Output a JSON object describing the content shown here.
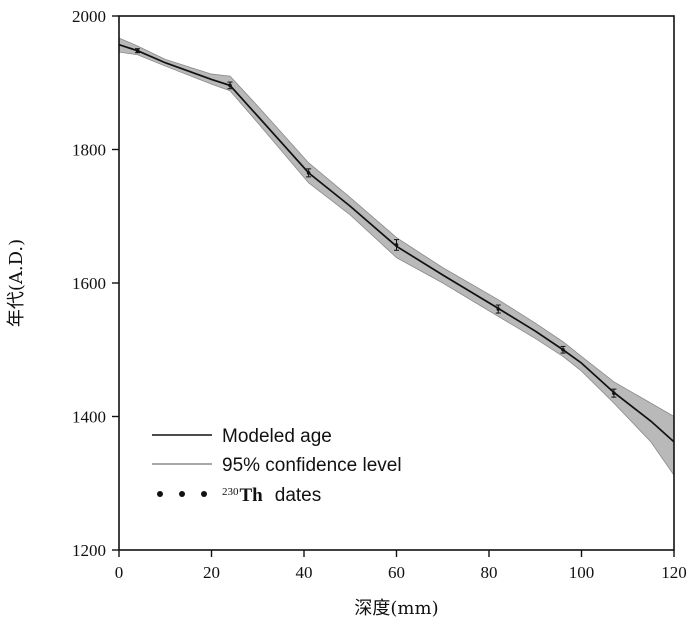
{
  "chart_data": {
    "type": "line",
    "xlabel": "深度(mm)",
    "ylabel": "年代(A.D.)",
    "xlim": [
      0,
      120
    ],
    "ylim": [
      1200,
      2000
    ],
    "xticks": [
      0,
      20,
      40,
      60,
      80,
      100,
      120
    ],
    "yticks": [
      1200,
      1400,
      1600,
      1800,
      2000
    ],
    "series": [
      {
        "name": "Modeled age",
        "x": [
          0,
          4,
          10,
          20,
          24,
          30,
          41,
          50,
          60,
          70,
          82,
          90,
          96,
          100,
          107,
          115,
          120
        ],
        "y": [
          1957,
          1948,
          1930,
          1905,
          1896,
          1850,
          1765,
          1715,
          1655,
          1612,
          1562,
          1528,
          1500,
          1480,
          1436,
          1393,
          1362
        ]
      },
      {
        "name": "95% confidence level",
        "x": [
          0,
          4,
          10,
          20,
          24,
          30,
          41,
          50,
          60,
          70,
          82,
          90,
          96,
          100,
          107,
          115,
          120
        ],
        "upper": [
          1967,
          1955,
          1935,
          1913,
          1910,
          1865,
          1780,
          1728,
          1668,
          1623,
          1575,
          1540,
          1512,
          1490,
          1452,
          1420,
          1400
        ],
        "lower": [
          1946,
          1942,
          1925,
          1898,
          1888,
          1840,
          1750,
          1702,
          1638,
          1600,
          1550,
          1517,
          1490,
          1468,
          1420,
          1362,
          1312
        ]
      },
      {
        "name": "230Th dates",
        "x": [
          4,
          24,
          41,
          60,
          82,
          96,
          107
        ],
        "y": [
          1948,
          1896,
          1765,
          1657,
          1561,
          1500,
          1435
        ],
        "err": [
          3,
          5,
          6,
          8,
          6,
          5,
          6
        ]
      }
    ],
    "legend": {
      "position": "bottom-left",
      "entries": [
        {
          "label": "Modeled age"
        },
        {
          "label": "95% confidence level"
        },
        {
          "sup": "230",
          "label": "Th",
          "suffix": "dates"
        }
      ]
    },
    "colors": {
      "line": "#111111",
      "band": "#b9b9b9",
      "band_edge": "#8a8a8a",
      "axis": "#111111"
    }
  }
}
